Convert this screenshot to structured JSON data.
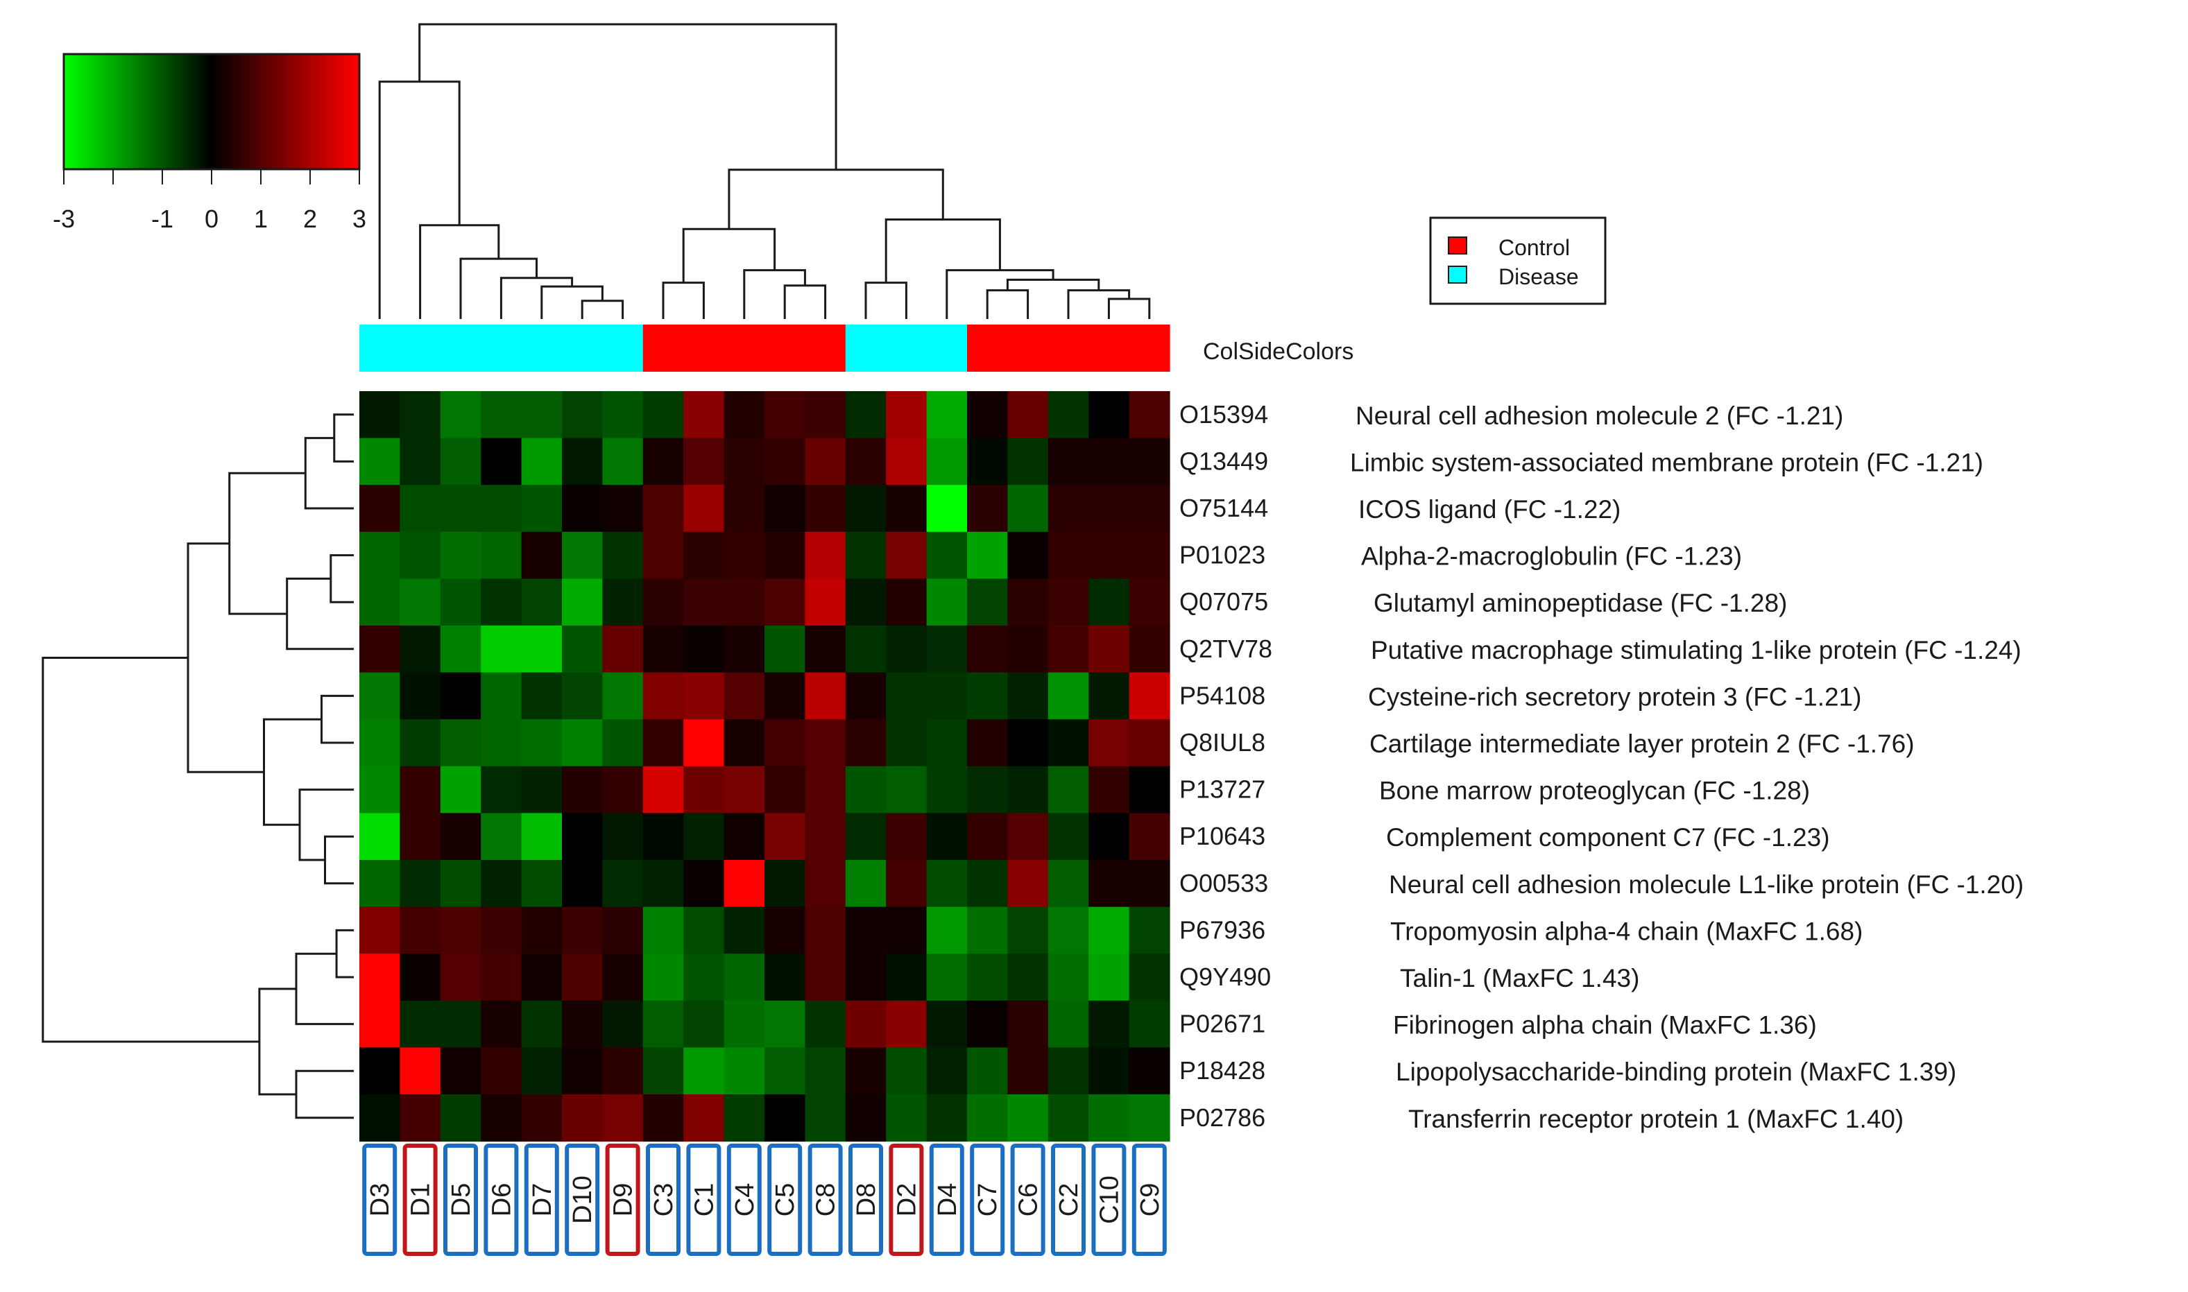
{
  "chart_data": {
    "type": "heatmap",
    "title": "",
    "columns": [
      "D3",
      "D1",
      "D5",
      "D6",
      "D7",
      "D10",
      "D9",
      "C3",
      "C1",
      "C4",
      "C5",
      "C8",
      "D8",
      "D2",
      "D4",
      "C7",
      "C6",
      "C2",
      "C10",
      "C9"
    ],
    "column_box_colors": [
      "blue",
      "red",
      "blue",
      "blue",
      "blue",
      "blue",
      "red",
      "blue",
      "blue",
      "blue",
      "blue",
      "blue",
      "blue",
      "red",
      "blue",
      "blue",
      "blue",
      "blue",
      "blue",
      "blue"
    ],
    "col_side_label": "ColSideColors",
    "col_side_groups": [
      "Disease",
      "Disease",
      "Disease",
      "Disease",
      "Disease",
      "Disease",
      "Disease",
      "Control",
      "Control",
      "Control",
      "Control",
      "Control",
      "Disease",
      "Disease",
      "Disease",
      "Control",
      "Control",
      "Control",
      "Control",
      "Control"
    ],
    "rows": [
      {
        "id": "O15394",
        "protein": "Neural cell adhesion molecule 2 (FC -1.21)"
      },
      {
        "id": "Q13449",
        "protein": "Limbic system-associated membrane protein (FC -1.21)"
      },
      {
        "id": "O75144",
        "protein": "ICOS ligand (FC -1.22)"
      },
      {
        "id": "P01023",
        "protein": "Alpha-2-macroglobulin  (FC -1.23)"
      },
      {
        "id": "Q07075",
        "protein": "Glutamyl aminopeptidase (FC -1.28)"
      },
      {
        "id": "Q2TV78",
        "protein": "Putative macrophage stimulating 1-like protein (FC -1.24)"
      },
      {
        "id": "P54108",
        "protein": "Cysteine-rich secretory protein 3 (FC -1.21)"
      },
      {
        "id": "Q8IUL8",
        "protein": "Cartilage intermediate layer protein 2 (FC -1.76)"
      },
      {
        "id": "P13727",
        "protein": "Bone marrow proteoglycan (FC -1.28)"
      },
      {
        "id": "P10643",
        "protein": "Complement component C7 (FC -1.23)"
      },
      {
        "id": "O00533",
        "protein": "Neural cell adhesion molecule L1-like protein (FC -1.20)"
      },
      {
        "id": "P67936",
        "protein": "Tropomyosin alpha-4 chain (MaxFC 1.68)"
      },
      {
        "id": "Q9Y490",
        "protein": "Talin-1 (MaxFC 1.43)"
      },
      {
        "id": "P02671",
        "protein": "Fibrinogen alpha chain (MaxFC 1.36)"
      },
      {
        "id": "P18428",
        "protein": "Lipopolysaccharide-binding protein (MaxFC 1.39)"
      },
      {
        "id": "P02786",
        "protein": "Transferrin receptor protein 1 (MaxFC 1.40)"
      }
    ],
    "values": [
      [
        -0.3,
        -0.5,
        -1.4,
        -1.1,
        -1.1,
        -0.8,
        -1.0,
        -0.7,
        1.6,
        0.4,
        0.8,
        0.7,
        -0.5,
        1.9,
        -2.0,
        0.2,
        1.2,
        -0.6,
        0.0,
        0.9
      ],
      [
        -1.6,
        -0.5,
        -1.1,
        0.0,
        -1.8,
        -0.3,
        -1.4,
        0.3,
        1.0,
        0.5,
        0.6,
        1.2,
        0.5,
        2.0,
        -1.8,
        -0.1,
        -0.6,
        0.3,
        0.3,
        0.3
      ],
      [
        0.5,
        -0.9,
        -0.9,
        -0.9,
        -1.0,
        0.1,
        0.2,
        0.9,
        1.8,
        0.5,
        0.2,
        0.6,
        -0.3,
        0.3,
        -3.0,
        0.5,
        -1.2,
        0.5,
        0.5,
        0.5
      ],
      [
        -1.2,
        -1.0,
        -1.3,
        -1.2,
        0.3,
        -1.4,
        -0.6,
        0.9,
        0.5,
        0.6,
        0.4,
        2.1,
        -0.6,
        1.4,
        -1.0,
        -1.9,
        0.1,
        0.6,
        0.6,
        0.6
      ],
      [
        -1.2,
        -1.4,
        -1.0,
        -0.6,
        -0.8,
        -2.0,
        -0.4,
        0.5,
        0.7,
        0.7,
        0.9,
        2.3,
        -0.3,
        0.4,
        -1.6,
        -0.8,
        0.5,
        0.7,
        -0.5,
        0.7
      ],
      [
        0.6,
        -0.3,
        -1.5,
        -2.4,
        -2.4,
        -1.0,
        1.2,
        0.3,
        0.1,
        0.3,
        -1.0,
        0.3,
        -0.6,
        -0.4,
        -0.5,
        0.5,
        0.4,
        0.8,
        1.3,
        0.6
      ],
      [
        -1.4,
        -0.2,
        0.0,
        -1.2,
        -0.6,
        -0.8,
        -1.4,
        1.5,
        1.6,
        1.0,
        0.3,
        2.2,
        0.3,
        -0.6,
        -0.6,
        -0.7,
        -0.4,
        -1.7,
        -0.3,
        2.4
      ],
      [
        -1.5,
        -0.7,
        -1.1,
        -1.2,
        -1.3,
        -1.5,
        -1.0,
        0.6,
        3.0,
        0.3,
        0.8,
        1.0,
        0.5,
        -0.6,
        -0.7,
        0.4,
        0.0,
        -0.2,
        1.4,
        1.2
      ],
      [
        -1.6,
        0.6,
        -1.9,
        -0.5,
        -0.4,
        0.4,
        0.6,
        2.5,
        1.3,
        1.4,
        0.6,
        1.0,
        -1.0,
        -1.1,
        -0.7,
        -0.5,
        -0.4,
        -1.1,
        0.6,
        0.0
      ],
      [
        -2.6,
        0.6,
        0.3,
        -1.4,
        -2.2,
        0.0,
        -0.3,
        -0.1,
        -0.4,
        0.2,
        1.4,
        1.0,
        -0.5,
        0.7,
        -0.2,
        0.6,
        1.0,
        -0.6,
        0.0,
        0.8
      ],
      [
        -1.2,
        -0.5,
        -0.9,
        -0.4,
        -0.9,
        0.0,
        -0.5,
        -0.4,
        0.1,
        3.3,
        -0.3,
        1.0,
        -1.5,
        0.8,
        -0.9,
        -0.6,
        1.6,
        -1.1,
        0.3,
        0.3
      ],
      [
        1.5,
        0.8,
        0.9,
        0.7,
        0.4,
        0.7,
        0.5,
        -1.5,
        -0.9,
        -0.4,
        0.3,
        0.9,
        0.2,
        0.2,
        -1.8,
        -1.3,
        -0.8,
        -1.4,
        -2.0,
        -0.8
      ],
      [
        3.0,
        0.1,
        1.0,
        0.8,
        0.2,
        0.9,
        0.3,
        -1.6,
        -1.0,
        -1.2,
        -0.2,
        0.9,
        0.2,
        -0.2,
        -1.3,
        -0.9,
        -0.6,
        -1.3,
        -1.9,
        -0.6
      ],
      [
        3.0,
        -0.5,
        -0.5,
        0.3,
        -0.6,
        0.3,
        -0.3,
        -1.1,
        -0.8,
        -1.3,
        -1.4,
        -0.6,
        1.3,
        1.6,
        -0.3,
        0.1,
        0.5,
        -1.2,
        -0.3,
        -0.7
      ],
      [
        0.0,
        3.2,
        0.2,
        0.6,
        -0.4,
        0.2,
        0.5,
        -0.8,
        -1.8,
        -1.6,
        -1.1,
        -0.8,
        0.3,
        -0.9,
        -0.4,
        -1.0,
        0.5,
        -0.6,
        -0.2,
        0.1
      ],
      [
        -0.2,
        0.8,
        -0.7,
        0.3,
        0.6,
        1.2,
        1.4,
        0.4,
        1.5,
        -0.7,
        0.0,
        -0.8,
        0.2,
        -1.0,
        -0.6,
        -1.3,
        -1.6,
        -0.9,
        -1.3,
        -1.4
      ]
    ],
    "color_key": {
      "ticks": [
        "-3",
        "-1",
        "0",
        "1",
        "2",
        "3"
      ],
      "min": -3,
      "max": 3,
      "low_color": "#00ff00",
      "mid_color": "#000000",
      "high_color": "#ff0000"
    },
    "legend": [
      {
        "label": "Control",
        "color": "#ff0000"
      },
      {
        "label": "Disease",
        "color": "#00ffff"
      }
    ],
    "group_colors": {
      "Disease": "#00ffff",
      "Control": "#ff0000"
    },
    "box_colors": {
      "blue": "#1b6ec2",
      "red": "#c0161c"
    }
  }
}
